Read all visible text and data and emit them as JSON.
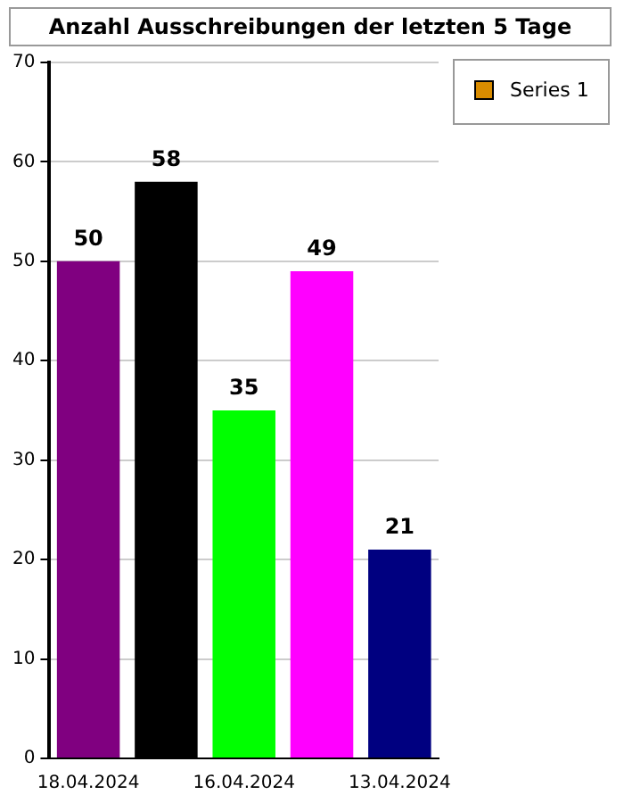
{
  "chart_data": {
    "type": "bar",
    "title": "Anzahl Ausschreibungen der letzten 5 Tage",
    "categories": [
      "18.04.2024",
      null,
      "16.04.2024",
      null,
      "13.04.2024"
    ],
    "series": [
      {
        "name": "Series 1",
        "color": "#d98c00",
        "colors": [
          "#800080",
          "#000000",
          "#00ff00",
          "#ff00ff",
          "#000080"
        ],
        "values": [
          50,
          58,
          35,
          49,
          21
        ]
      }
    ],
    "ylim": [
      0,
      70
    ],
    "yticks": [
      0,
      10,
      20,
      30,
      40,
      50,
      60,
      70
    ],
    "grid": "y",
    "legend": "top right",
    "data_labels": true
  }
}
